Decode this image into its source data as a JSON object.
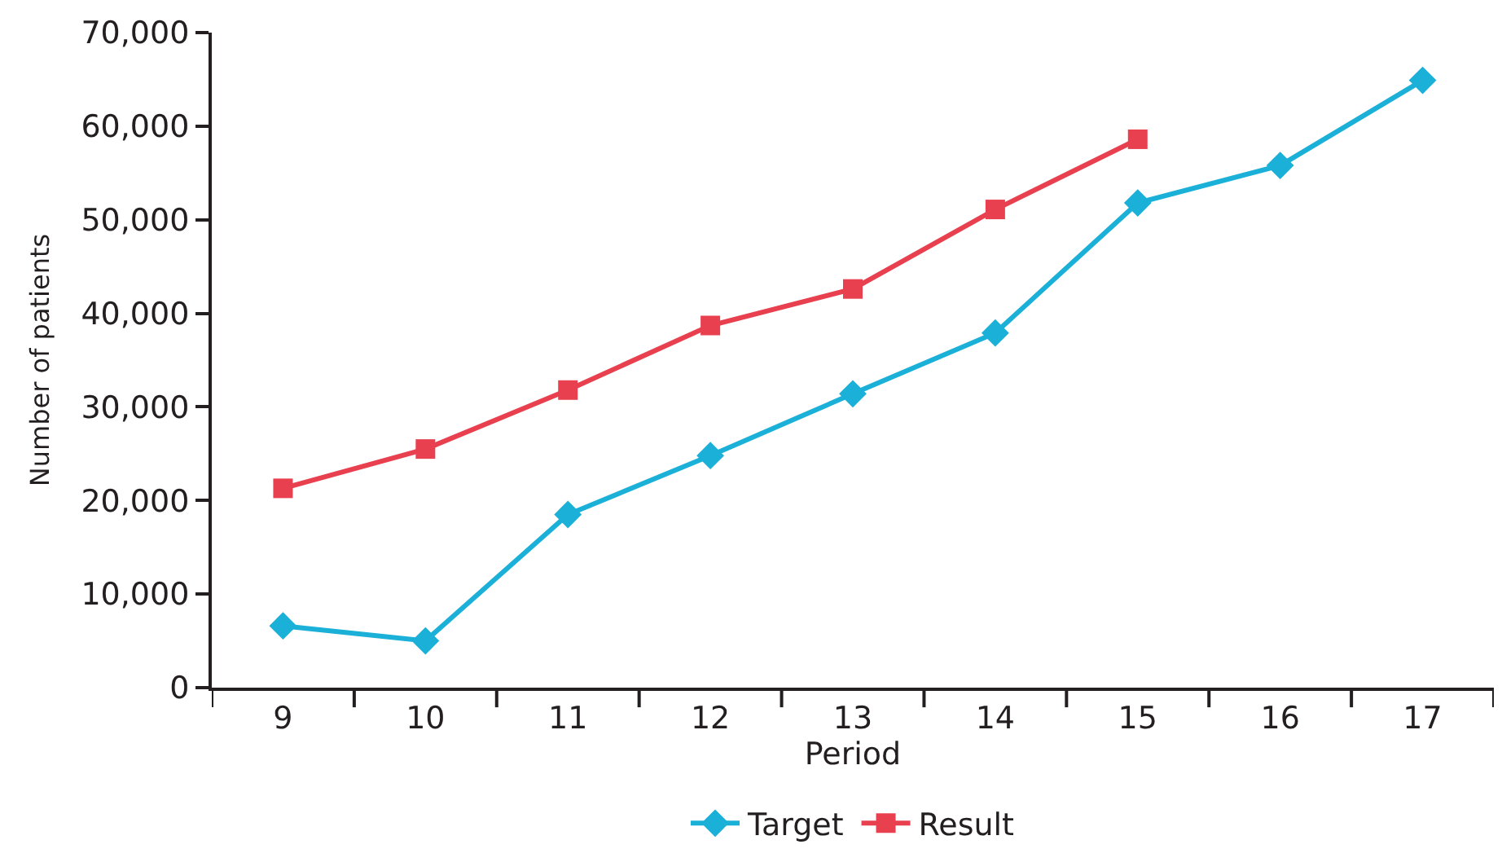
{
  "chart_data": {
    "type": "line",
    "xlabel": "Period",
    "ylabel": "Number of patients",
    "categories": [
      "9",
      "10",
      "11",
      "12",
      "13",
      "14",
      "15",
      "16",
      "17"
    ],
    "series": [
      {
        "name": "Target",
        "color": "#1ab0d8",
        "marker": "diamond",
        "values": [
          6600,
          5000,
          18500,
          24800,
          31400,
          37900,
          51800,
          55800,
          64900
        ]
      },
      {
        "name": "Result",
        "color": "#e8404f",
        "marker": "square",
        "values": [
          21300,
          25500,
          31800,
          38700,
          42600,
          51100,
          58600,
          null,
          null
        ]
      }
    ],
    "ylim": [
      0,
      70000
    ],
    "yticks": [
      {
        "value": 0,
        "label": "0"
      },
      {
        "value": 10000,
        "label": "10,000"
      },
      {
        "value": 20000,
        "label": "20,000"
      },
      {
        "value": 30000,
        "label": "30,000"
      },
      {
        "value": 40000,
        "label": "40,000"
      },
      {
        "value": 50000,
        "label": "50,000"
      },
      {
        "value": 60000,
        "label": "60,000"
      },
      {
        "value": 70000,
        "label": "70,000"
      }
    ],
    "legend": "bottom",
    "line_style": "solid"
  }
}
